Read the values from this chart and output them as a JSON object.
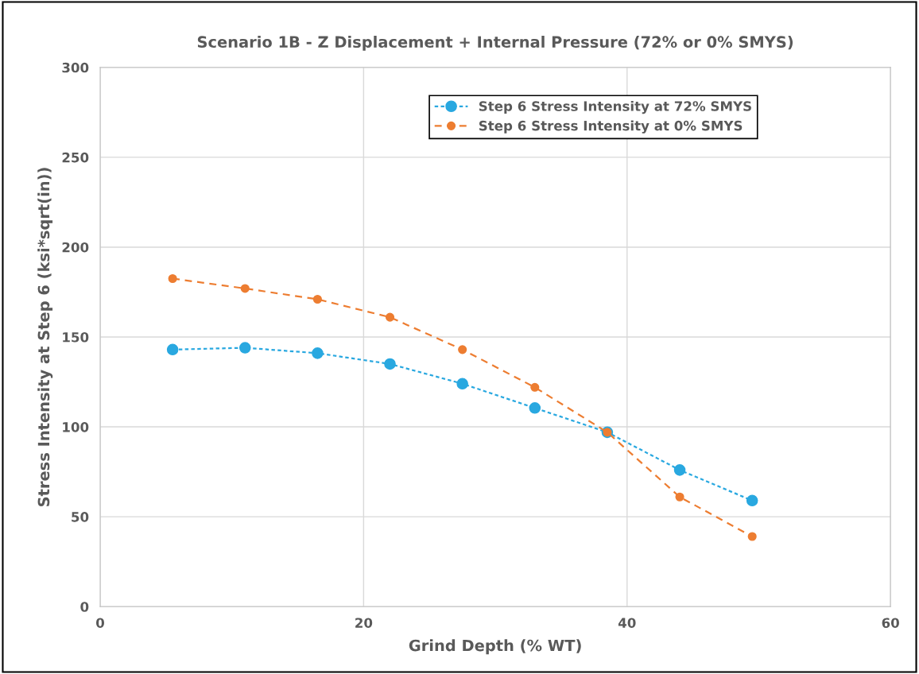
{
  "chart_data": {
    "type": "line",
    "title": "Scenario 1B - Z Displacement + Internal Pressure (72% or 0% SMYS)",
    "xlabel": "Grind Depth (% WT)",
    "ylabel": "Stress Intensity at Step 6 (ksi*sqrt(in))",
    "x": [
      5.5,
      11,
      16.5,
      22,
      27.5,
      33,
      38.5,
      44,
      49.5
    ],
    "series": [
      {
        "name": "Step 6 Stress Intensity at 72% SMYS",
        "color": "#29a8e0",
        "line_style": "dotted",
        "values": [
          143,
          144,
          141,
          135,
          124,
          110.5,
          97,
          76,
          59
        ]
      },
      {
        "name": "Step 6 Stress Intensity at 0% SMYS",
        "color": "#ed7d31",
        "line_style": "dashed",
        "values": [
          182.5,
          177,
          171,
          161,
          143,
          122,
          97,
          61,
          39
        ]
      }
    ],
    "xlim": [
      0,
      60
    ],
    "xticks": [
      0,
      20,
      40,
      60
    ],
    "ylim": [
      0,
      300
    ],
    "yticks": [
      0,
      50,
      100,
      150,
      200,
      250,
      300
    ],
    "grid": true,
    "legend": "top right",
    "marker": "circle"
  }
}
